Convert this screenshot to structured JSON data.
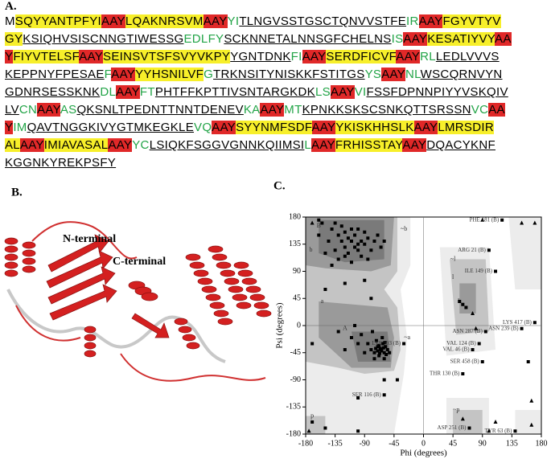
{
  "panel_a": {
    "label": "A.",
    "lines": [
      [
        [
          "M",
          "plain"
        ],
        [
          "SQYYANTPFYI",
          "yellow"
        ],
        [
          "AAY",
          "red"
        ],
        [
          "LQAKNRSVM",
          "yellow"
        ],
        [
          "AAY",
          "red"
        ],
        [
          "YI",
          "green"
        ],
        [
          "TLNGVSSTGSCTQNVVSTFE",
          "underline"
        ],
        [
          "IR",
          "green"
        ],
        [
          "AAY",
          "red"
        ],
        [
          "FGYVTYV",
          "yellow"
        ]
      ],
      [
        [
          "GY",
          "yellow"
        ],
        [
          "KSIQHVSISCNNGTIWESSG",
          "underline"
        ],
        [
          "EDLFY",
          "green"
        ],
        [
          "SCKNNETALNNSGFCHELNS",
          "underline"
        ],
        [
          "IS",
          "green"
        ],
        [
          "AAY",
          "red"
        ],
        [
          "KESATIYVY",
          "yellow"
        ],
        [
          "AA",
          "red"
        ]
      ],
      [
        [
          "Y",
          "red"
        ],
        [
          "FIYVTELSF",
          "yellow"
        ],
        [
          "AAY",
          "red"
        ],
        [
          "SEINSVTSFSVYVKPY",
          "yellow"
        ],
        [
          "YGNTDNK",
          "underline"
        ],
        [
          "FI",
          "green"
        ],
        [
          "AAY",
          "red"
        ],
        [
          "SERDFICVF",
          "yellow"
        ],
        [
          "AAY",
          "red"
        ],
        [
          "RL",
          "green"
        ],
        [
          "LEDLVVVS",
          "underline"
        ]
      ],
      [
        [
          "KEPPNYFPESAE",
          "underline"
        ],
        [
          "F",
          "green"
        ],
        [
          "AAY",
          "red"
        ],
        [
          "YYHSNILVF",
          "yellow"
        ],
        [
          "G",
          "green"
        ],
        [
          "TRKNSITYNISKKFSTITGS",
          "underline"
        ],
        [
          "YS",
          "green"
        ],
        [
          "AAY",
          "red"
        ],
        [
          "NL",
          "green"
        ],
        [
          "WSCQRNVYN",
          "underline"
        ]
      ],
      [
        [
          "GDNRSESSKNK",
          "underline"
        ],
        [
          "DL",
          "green"
        ],
        [
          "AAY",
          "red"
        ],
        [
          "FT",
          "green"
        ],
        [
          "PHTFFKPTTIVSNTARGKDK",
          "underline"
        ],
        [
          "LS",
          "green"
        ],
        [
          "AAY",
          "red"
        ],
        [
          "VI",
          "green"
        ],
        [
          "FSSFDPNNPIYYVSKQIV",
          "underline"
        ]
      ],
      [
        [
          "LV",
          "underline"
        ],
        [
          "CN",
          "green"
        ],
        [
          "AAY",
          "red"
        ],
        [
          "AS",
          "green"
        ],
        [
          "QKSNLTPEDNTTNNTDENEV",
          "underline"
        ],
        [
          "KA",
          "green"
        ],
        [
          "AAY",
          "red"
        ],
        [
          "MT",
          "green"
        ],
        [
          "KPNKKSKSCSNKQTTSRSSN",
          "underline"
        ],
        [
          "VC",
          "green"
        ],
        [
          "AA",
          "red"
        ]
      ],
      [
        [
          "Y",
          "red"
        ],
        [
          "IM",
          "green"
        ],
        [
          "QAVTNGGKIVYGTMKEGKLE",
          "underline"
        ],
        [
          "VQ",
          "green"
        ],
        [
          "AAY",
          "red"
        ],
        [
          "SYYNMFSDF",
          "yellow"
        ],
        [
          "AAY",
          "red"
        ],
        [
          "YKISKHHSLK",
          "yellow"
        ],
        [
          "AAY",
          "red"
        ],
        [
          "LMRSDIR",
          "yellow"
        ]
      ],
      [
        [
          "AL",
          "yellow"
        ],
        [
          "AAY",
          "red"
        ],
        [
          "IMIAVASAL",
          "yellow"
        ],
        [
          "AAY",
          "red"
        ],
        [
          "YC",
          "green"
        ],
        [
          "LSIQKFSGGVGNNKQIIMSI",
          "underline"
        ],
        [
          "L",
          "green"
        ],
        [
          "AAY",
          "red"
        ],
        [
          "FRHISSTAY",
          "yellow"
        ],
        [
          "AAY",
          "red"
        ],
        [
          "DQACYKNF",
          "underline"
        ]
      ],
      [
        [
          "KGGNKYREKPSFY",
          "underline"
        ]
      ]
    ]
  },
  "panel_b": {
    "label": "B.",
    "n_terminal": "N-terminal",
    "c_terminal": "C-terminal"
  },
  "chart_data": {
    "type": "scatter",
    "label": "C.",
    "xlabel": "Phi (degrees)",
    "ylabel": "Psi (degrees)",
    "xlim": [
      -180,
      180
    ],
    "ylim": [
      -180,
      180
    ],
    "xticks": [
      -180,
      -135,
      -90,
      -45,
      0,
      45,
      90,
      135,
      180
    ],
    "yticks": [
      -180,
      -135,
      -90,
      -45,
      0,
      45,
      90,
      135,
      180
    ],
    "series": [
      {
        "marker": "square",
        "color": "#000000",
        "x": [
          -120,
          -110,
          -100,
          -130,
          -90,
          -140,
          -115,
          -105,
          -95,
          -125,
          -85,
          -135,
          -110,
          -100,
          -120,
          -75,
          -145,
          -90,
          -130,
          -105,
          -115,
          -80,
          -60,
          -150,
          -125,
          -95,
          -110,
          -70,
          -135,
          -100,
          -160,
          -85,
          -120,
          -65,
          -140,
          -155,
          -160,
          -65,
          -60,
          -70,
          -55,
          -62,
          -75,
          -68,
          -58,
          -80,
          -64,
          -72,
          -66,
          -60,
          -90,
          -57,
          -70,
          -63,
          -85,
          -52,
          -68,
          -100,
          -75,
          -61,
          -95,
          -110,
          -78,
          -120,
          -67,
          -73,
          -59,
          -105,
          -130,
          -90,
          -120,
          -80,
          -150,
          -60,
          -100,
          -150,
          -170,
          -100,
          55,
          60,
          65,
          -170,
          160,
          -40
        ],
        "y": [
          130,
          140,
          125,
          150,
          135,
          160,
          120,
          150,
          115,
          140,
          145,
          125,
          160,
          135,
          115,
          140,
          140,
          155,
          110,
          130,
          145,
          125,
          140,
          120,
          165,
          140,
          105,
          150,
          170,
          160,
          150,
          110,
          155,
          130,
          100,
          170,
          175,
          -40,
          -45,
          -35,
          -40,
          -30,
          -45,
          -50,
          -35,
          -40,
          -42,
          -25,
          -38,
          -55,
          -45,
          -48,
          -42,
          -20,
          -30,
          -45,
          -33,
          -30,
          -55,
          -37,
          -15,
          -20,
          -10,
          -40,
          -46,
          -38,
          -28,
          0,
          -10,
          75,
          70,
          45,
          60,
          -90,
          -120,
          -170,
          -160,
          -175,
          40,
          35,
          30,
          -30,
          -60,
          -90
        ]
      },
      {
        "marker": "triangle",
        "color": "#000000",
        "x": [
          170,
          90,
          -170,
          75,
          80,
          100,
          60,
          150,
          165,
          -175,
          110,
          165
        ],
        "y": [
          170,
          175,
          170,
          20,
          -5,
          -175,
          -155,
          170,
          -165,
          -175,
          -160,
          -125
        ]
      }
    ],
    "annotations": [
      {
        "text": "PHE 181 (B)",
        "x": 120,
        "y": 175
      },
      {
        "text": "ARG 21 (B)",
        "x": 100,
        "y": 125
      },
      {
        "text": "ILE 149 (B)",
        "x": 110,
        "y": 90
      },
      {
        "text": "LYS 417 (B)",
        "x": 170,
        "y": 5
      },
      {
        "text": "ASN 239 (B)",
        "x": 150,
        "y": -5
      },
      {
        "text": "ASN 287 (B)",
        "x": 95,
        "y": -10
      },
      {
        "text": "VAL 124 (B)",
        "x": 85,
        "y": -30
      },
      {
        "text": "VAL 46 (B)",
        "x": 75,
        "y": -40
      },
      {
        "text": "SER 458 (B)",
        "x": 90,
        "y": -60
      },
      {
        "text": "THR 130 (B)",
        "x": 60,
        "y": -80
      },
      {
        "text": "LYS 393 (B)",
        "x": -30,
        "y": -30
      },
      {
        "text": "SER 116 (B)",
        "x": -60,
        "y": -115
      },
      {
        "text": "ASP 251 (B)",
        "x": 70,
        "y": -170
      },
      {
        "text": "TYR 63 (B)",
        "x": 140,
        "y": -175
      }
    ],
    "regions": [
      {
        "text": "B",
        "x": -160,
        "y": 165
      },
      {
        "text": "b",
        "x": -172,
        "y": 125
      },
      {
        "text": "A",
        "x": -120,
        "y": -5
      },
      {
        "text": "a",
        "x": -155,
        "y": 40
      },
      {
        "text": "L",
        "x": 55,
        "y": 40
      },
      {
        "text": "l",
        "x": 45,
        "y": 80
      },
      {
        "text": "~b",
        "x": -30,
        "y": 160
      },
      {
        "text": "~a",
        "x": -25,
        "y": -20
      },
      {
        "text": "~l",
        "x": 45,
        "y": 110
      },
      {
        "text": "~p",
        "x": 50,
        "y": -140
      },
      {
        "text": "p",
        "x": -170,
        "y": -150
      }
    ]
  }
}
